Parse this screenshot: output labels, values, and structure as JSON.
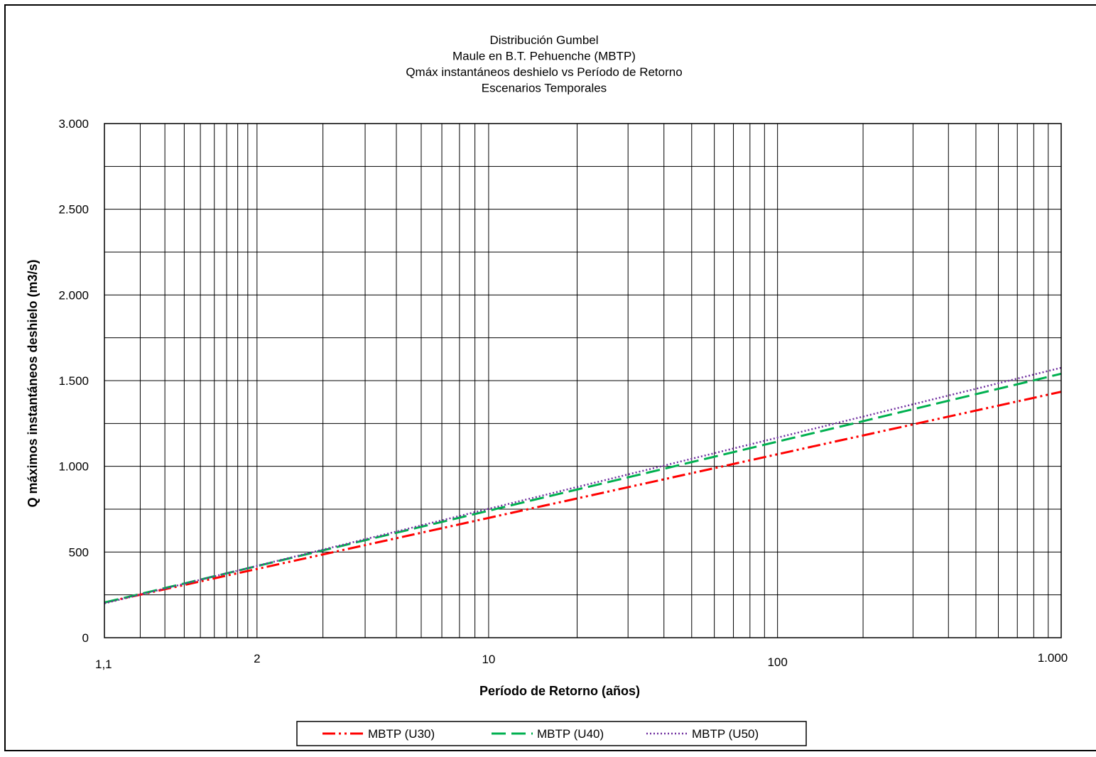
{
  "chart_data": {
    "type": "line",
    "title_lines": [
      "Distribución Gumbel",
      "Maule en B.T. Pehuenche  (MBTP)",
      "Qmáx instantáneos  deshielo vs Período de Retorno",
      "Escenarios Temporales"
    ],
    "xlabel": "Período de Retorno  (años)",
    "ylabel": "Q máximos instantáneos  deshielo (m3/s)",
    "x_scale": "gumbel-reduced-variate",
    "xlim": [
      1.1,
      1000
    ],
    "ylim": [
      0,
      3000
    ],
    "x_ticks": [
      {
        "value": 1.1,
        "label": "1,1"
      },
      {
        "value": 2,
        "label": "2"
      },
      {
        "value": 10,
        "label": "10"
      },
      {
        "value": 100,
        "label": "100"
      },
      {
        "value": 1000,
        "label": "1.000"
      }
    ],
    "y_ticks": [
      {
        "value": 0,
        "label": "0"
      },
      {
        "value": 500,
        "label": "500"
      },
      {
        "value": 1000,
        "label": "1.000"
      },
      {
        "value": 1500,
        "label": "1.500"
      },
      {
        "value": 2000,
        "label": "2.000"
      },
      {
        "value": 2500,
        "label": "2.500"
      },
      {
        "value": 3000,
        "label": "3.000"
      }
    ],
    "x_gridlines": [
      1.1,
      1.2,
      1.3,
      1.4,
      1.5,
      1.6,
      1.7,
      1.8,
      1.9,
      2,
      3,
      4,
      5,
      6,
      7,
      8,
      9,
      10,
      20,
      30,
      40,
      50,
      60,
      70,
      80,
      90,
      100,
      200,
      300,
      400,
      500,
      600,
      700,
      800,
      900,
      1000
    ],
    "y_gridlines": [
      0,
      250,
      500,
      750,
      1000,
      1250,
      1500,
      1750,
      2000,
      2250,
      2500,
      2750,
      3000
    ],
    "grid": true,
    "legend_position": "bottom",
    "series": [
      {
        "name": "MBTP (U30)",
        "color": "#ff0000",
        "dash": "dash-dot-dot",
        "x": [
          1.1,
          1000
        ],
        "y": [
          205,
          1435
        ]
      },
      {
        "name": "MBTP (U40)",
        "color": "#00b050",
        "dash": "long-dash",
        "x": [
          1.1,
          1000
        ],
        "y": [
          205,
          1540
        ]
      },
      {
        "name": "MBTP (U50)",
        "color": "#7030a0",
        "dash": "dotted",
        "x": [
          1.1,
          1000
        ],
        "y": [
          200,
          1575
        ]
      }
    ]
  }
}
